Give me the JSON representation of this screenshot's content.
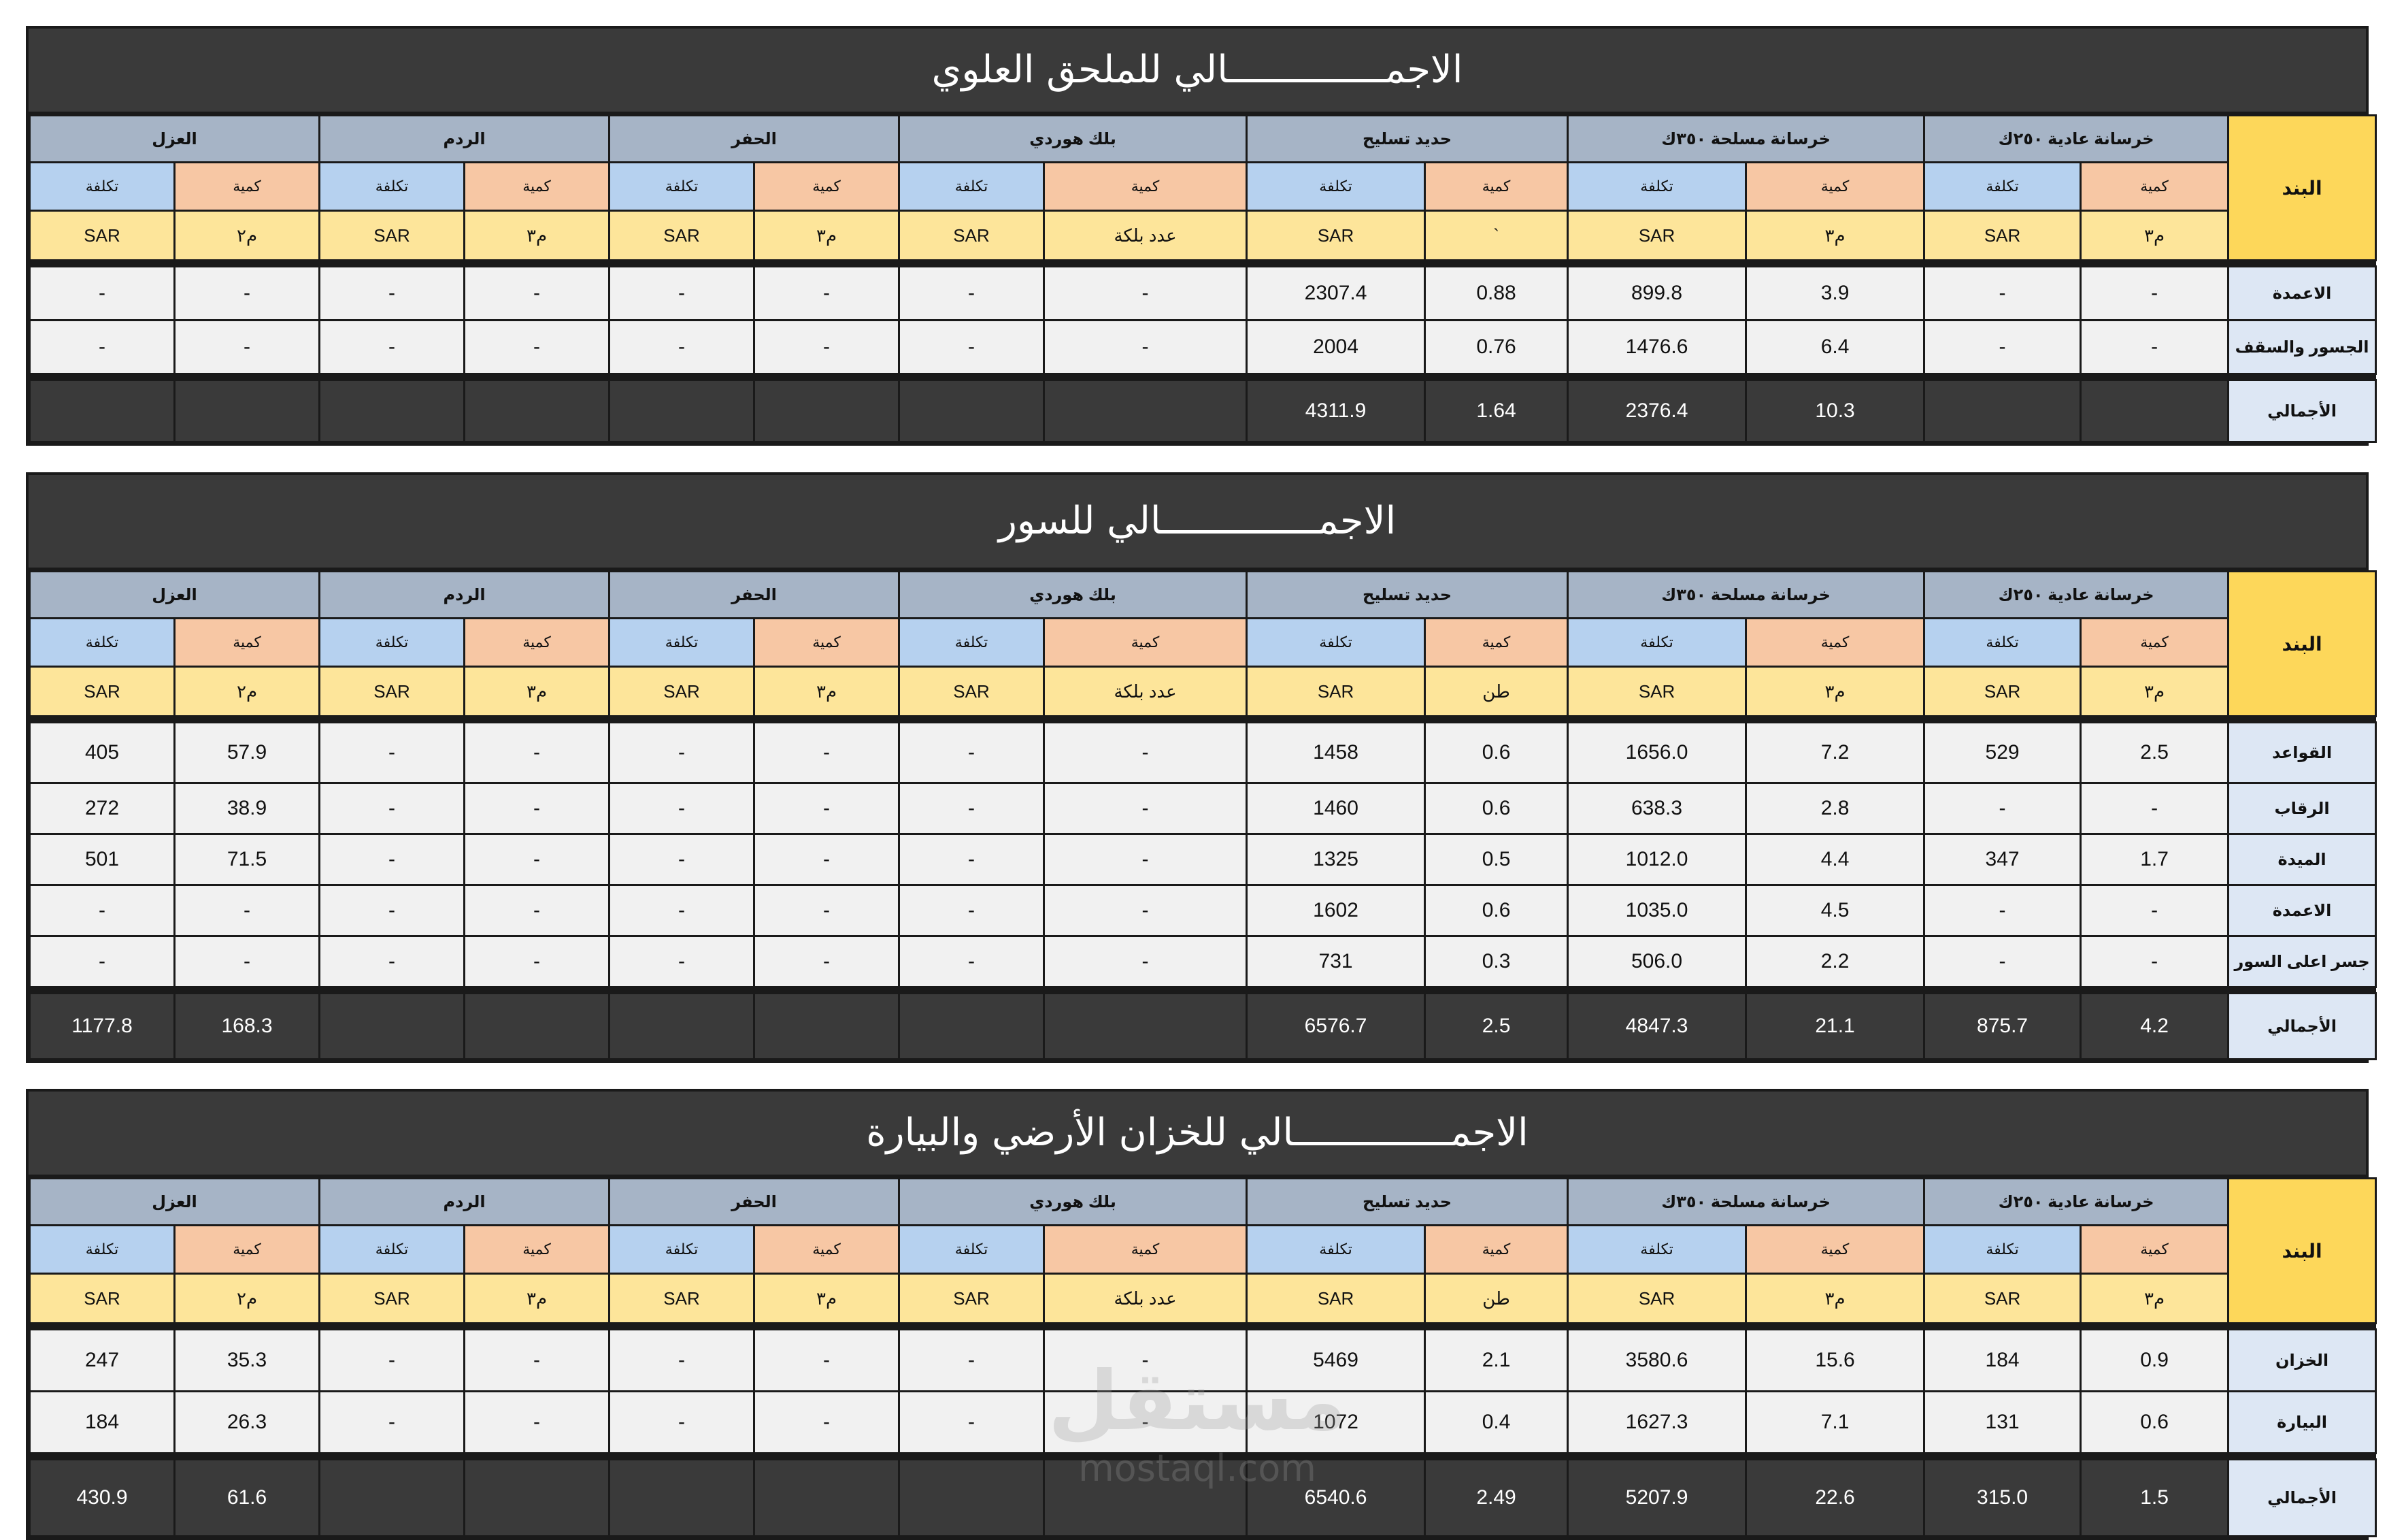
{
  "columns": {
    "band": "البند",
    "groups": [
      "خرسانة عادية ٢٥٠ك",
      "خرسانة مسلحة ٣٥٠ك",
      "حديد تسليح",
      "بلك هوردي",
      "الحفر",
      "الردم",
      "العزل"
    ],
    "qty": "كمية",
    "cost": "تكلفة"
  },
  "sections": [
    {
      "title": "الاجمــــــــــــــالي للملحق العلوي",
      "units": [
        "م٣",
        "SAR",
        "م٣",
        "SAR",
        "`",
        "SAR",
        "عدد بلكة",
        "SAR",
        "م٣",
        "SAR",
        "م٣",
        "SAR",
        "م٢",
        "SAR"
      ],
      "rows": [
        {
          "label": "الاعمدة",
          "values": [
            "-",
            "-",
            "3.9",
            "899.8",
            "0.88",
            "2307.4",
            "-",
            "-",
            "-",
            "-",
            "-",
            "-",
            "-",
            "-"
          ]
        },
        {
          "label": "الجسور والسقف",
          "values": [
            "-",
            "-",
            "6.4",
            "1476.6",
            "0.76",
            "2004",
            "-",
            "-",
            "-",
            "-",
            "-",
            "-",
            "-",
            "-"
          ]
        }
      ],
      "total": {
        "label": "الأجمالي",
        "values": [
          "",
          "",
          "10.3",
          "2376.4",
          "1.64",
          "4311.9",
          "",
          "",
          "",
          "",
          "",
          "",
          "",
          ""
        ]
      }
    },
    {
      "title": "الاجمــــــــــــــالي للسور",
      "units": [
        "م٣",
        "SAR",
        "م٣",
        "SAR",
        "طن",
        "SAR",
        "عدد بلكة",
        "SAR",
        "م٣",
        "SAR",
        "م٣",
        "SAR",
        "م٢",
        "SAR"
      ],
      "rows": [
        {
          "label": "القواعد",
          "values": [
            "2.5",
            "529",
            "7.2",
            "1656.0",
            "0.6",
            "1458",
            "-",
            "-",
            "-",
            "-",
            "-",
            "-",
            "57.9",
            "405"
          ]
        },
        {
          "label": "الرقاب",
          "values": [
            "-",
            "-",
            "2.8",
            "638.3",
            "0.6",
            "1460",
            "-",
            "-",
            "-",
            "-",
            "-",
            "-",
            "38.9",
            "272"
          ]
        },
        {
          "label": "الميدة",
          "values": [
            "1.7",
            "347",
            "4.4",
            "1012.0",
            "0.5",
            "1325",
            "-",
            "-",
            "-",
            "-",
            "-",
            "-",
            "71.5",
            "501"
          ]
        },
        {
          "label": "الاعمدة",
          "values": [
            "-",
            "-",
            "4.5",
            "1035.0",
            "0.6",
            "1602",
            "-",
            "-",
            "-",
            "-",
            "-",
            "-",
            "-",
            "-"
          ]
        },
        {
          "label": "جسر اعلى السور",
          "values": [
            "-",
            "-",
            "2.2",
            "506.0",
            "0.3",
            "731",
            "-",
            "-",
            "-",
            "-",
            "-",
            "-",
            "-",
            "-"
          ]
        }
      ],
      "total": {
        "label": "الأجمالي",
        "values": [
          "4.2",
          "875.7",
          "21.1",
          "4847.3",
          "2.5",
          "6576.7",
          "",
          "",
          "",
          "",
          "",
          "",
          "168.3",
          "1177.8"
        ]
      }
    },
    {
      "title": "الاجمــــــــــــــالي للخزان الأرضي والبيارة",
      "units": [
        "م٣",
        "SAR",
        "م٣",
        "SAR",
        "طن",
        "SAR",
        "عدد بلكة",
        "SAR",
        "م٣",
        "SAR",
        "م٣",
        "SAR",
        "م٢",
        "SAR"
      ],
      "rows": [
        {
          "label": "الخزان",
          "values": [
            "0.9",
            "184",
            "15.6",
            "3580.6",
            "2.1",
            "5469",
            "-",
            "-",
            "-",
            "-",
            "-",
            "-",
            "35.3",
            "247"
          ]
        },
        {
          "label": "البيارة",
          "values": [
            "0.6",
            "131",
            "7.1",
            "1627.3",
            "0.4",
            "1072",
            "-",
            "-",
            "-",
            "-",
            "-",
            "-",
            "26.3",
            "184"
          ]
        }
      ],
      "total": {
        "label": "الأجمالي",
        "values": [
          "1.5",
          "315.0",
          "22.6",
          "5207.9",
          "2.49",
          "6540.6",
          "",
          "",
          "",
          "",
          "",
          "",
          "61.6",
          "430.9"
        ]
      }
    }
  ],
  "watermark": {
    "arabic": "مستقل",
    "latin": "mostaql.com"
  }
}
